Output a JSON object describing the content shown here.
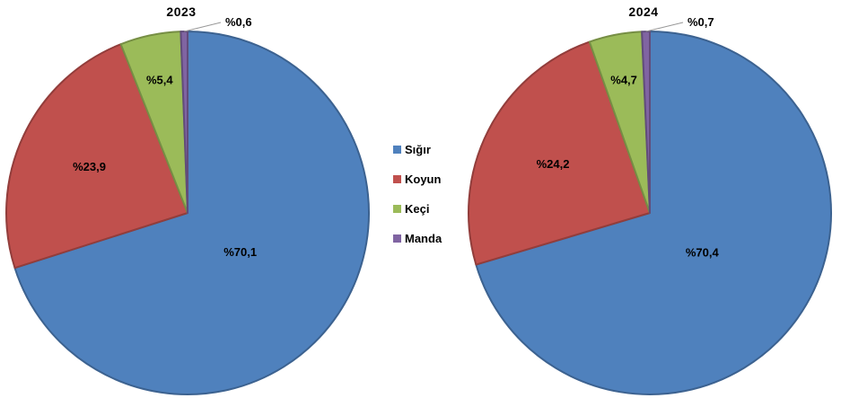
{
  "figure": {
    "background": "#FFFFFF"
  },
  "legend": {
    "items": [
      {
        "key": "sigir",
        "label": "Sığır",
        "color": "#4F81BD"
      },
      {
        "key": "koyun",
        "label": "Koyun",
        "color": "#C0504D"
      },
      {
        "key": "keci",
        "label": "Keçi",
        "color": "#9BBB59"
      },
      {
        "key": "manda",
        "label": "Manda",
        "color": "#8064A2"
      }
    ]
  },
  "chart_data": [
    {
      "type": "pie",
      "title": "2023",
      "categories": [
        "Sığır",
        "Koyun",
        "Keçi",
        "Manda"
      ],
      "keys": [
        "sigir",
        "koyun",
        "keci",
        "manda"
      ],
      "values": [
        70.1,
        23.9,
        5.4,
        0.6
      ],
      "labels": [
        "%70,1",
        "%23,9",
        "%5,4",
        "%0,6"
      ],
      "colors": [
        "#4F81BD",
        "#C0504D",
        "#9BBB59",
        "#8064A2"
      ],
      "start_angle_deg": 0,
      "direction": "clockwise",
      "unit": "percent",
      "legend_position": "right"
    },
    {
      "type": "pie",
      "title": "2024",
      "categories": [
        "Sığır",
        "Koyun",
        "Keçi",
        "Manda"
      ],
      "keys": [
        "sigir",
        "koyun",
        "keci",
        "manda"
      ],
      "values": [
        70.4,
        24.2,
        4.7,
        0.7
      ],
      "labels": [
        "%70,4",
        "%24,2",
        "%4,7",
        "%0,7"
      ],
      "colors": [
        "#4F81BD",
        "#C0504D",
        "#9BBB59",
        "#8064A2"
      ],
      "start_angle_deg": 0,
      "direction": "clockwise",
      "unit": "percent",
      "legend_position": "left"
    }
  ]
}
